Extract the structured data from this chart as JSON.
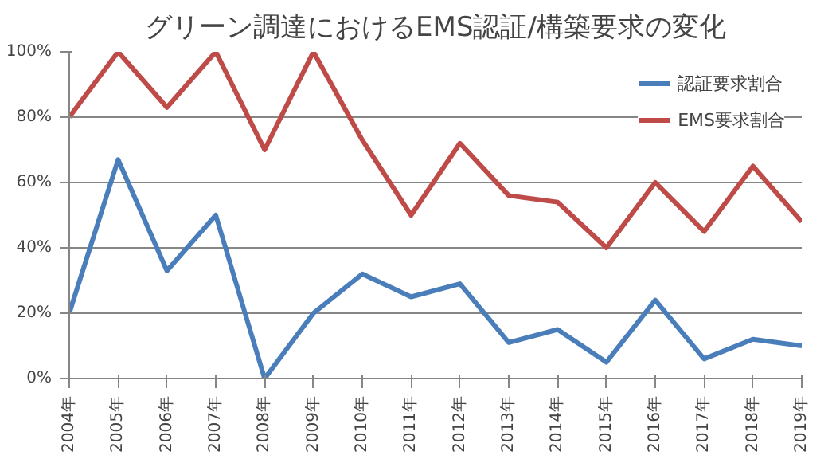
{
  "chart_data": {
    "type": "line",
    "title": "グリーン調達におけるEMS認証/構築要求の変化",
    "categories": [
      "2004年",
      "2005年",
      "2006年",
      "2007年",
      "2008年",
      "2009年",
      "2010年",
      "2011年",
      "2012年",
      "2013年",
      "2014年",
      "2015年",
      "2016年",
      "2017年",
      "2018年",
      "2019年"
    ],
    "series": [
      {
        "name": "認証要求割合",
        "color": "#4a7ebb",
        "values": [
          20,
          67,
          33,
          50,
          0,
          20,
          32,
          25,
          29,
          11,
          15,
          5,
          24,
          6,
          12,
          10
        ]
      },
      {
        "name": "EMS要求割合",
        "color": "#be4b48",
        "values": [
          80,
          100,
          83,
          100,
          70,
          100,
          73,
          50,
          72,
          56,
          54,
          40,
          60,
          45,
          65,
          48
        ]
      }
    ],
    "ylim": [
      0,
      100
    ],
    "yticks": [
      {
        "value": 0,
        "label": "0%"
      },
      {
        "value": 20,
        "label": "20%"
      },
      {
        "value": 40,
        "label": "40%"
      },
      {
        "value": 60,
        "label": "60%"
      },
      {
        "value": 80,
        "label": "80%"
      },
      {
        "value": 100,
        "label": "100%"
      }
    ],
    "grid": "y",
    "legend": "top right",
    "marker": "none",
    "line_style": "solid"
  }
}
